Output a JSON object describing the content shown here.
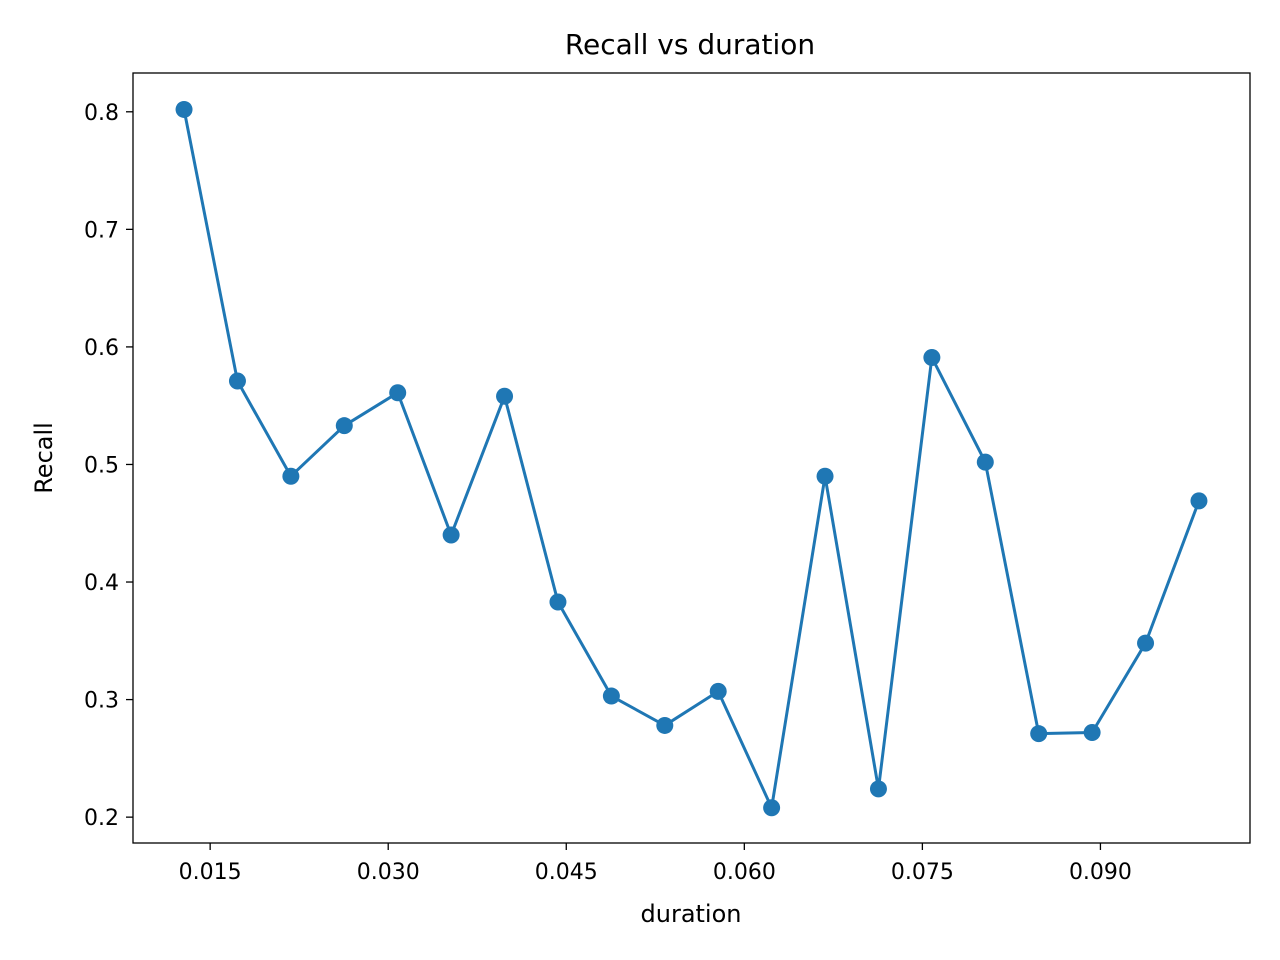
{
  "chart_data": {
    "type": "line",
    "title": "Recall vs duration",
    "xlabel": "duration",
    "ylabel": "Recall",
    "xlim": [
      0.0085,
      0.1026
    ],
    "ylim": [
      0.178,
      0.833
    ],
    "xticks": [
      0.015,
      0.03,
      0.045,
      0.06,
      0.075,
      0.09
    ],
    "xtick_labels": [
      "0.015",
      "0.030",
      "0.045",
      "0.060",
      "0.075",
      "0.090"
    ],
    "yticks": [
      0.2,
      0.3,
      0.4,
      0.5,
      0.6,
      0.7,
      0.8
    ],
    "ytick_labels": [
      "0.2",
      "0.3",
      "0.4",
      "0.5",
      "0.6",
      "0.7",
      "0.8"
    ],
    "grid": false,
    "series": [
      {
        "color": "#1f77b4",
        "marker": "circle",
        "x": [
          0.0128,
          0.0173,
          0.0218,
          0.0263,
          0.0308,
          0.0353,
          0.0398,
          0.0443,
          0.0488,
          0.0533,
          0.0578,
          0.0623,
          0.0668,
          0.0713,
          0.0758,
          0.0803,
          0.0848,
          0.0893,
          0.0938,
          0.0983
        ],
        "y": [
          0.802,
          0.571,
          0.49,
          0.533,
          0.561,
          0.44,
          0.558,
          0.383,
          0.303,
          0.278,
          0.307,
          0.208,
          0.49,
          0.224,
          0.591,
          0.502,
          0.271,
          0.272,
          0.348,
          0.469
        ]
      }
    ]
  }
}
